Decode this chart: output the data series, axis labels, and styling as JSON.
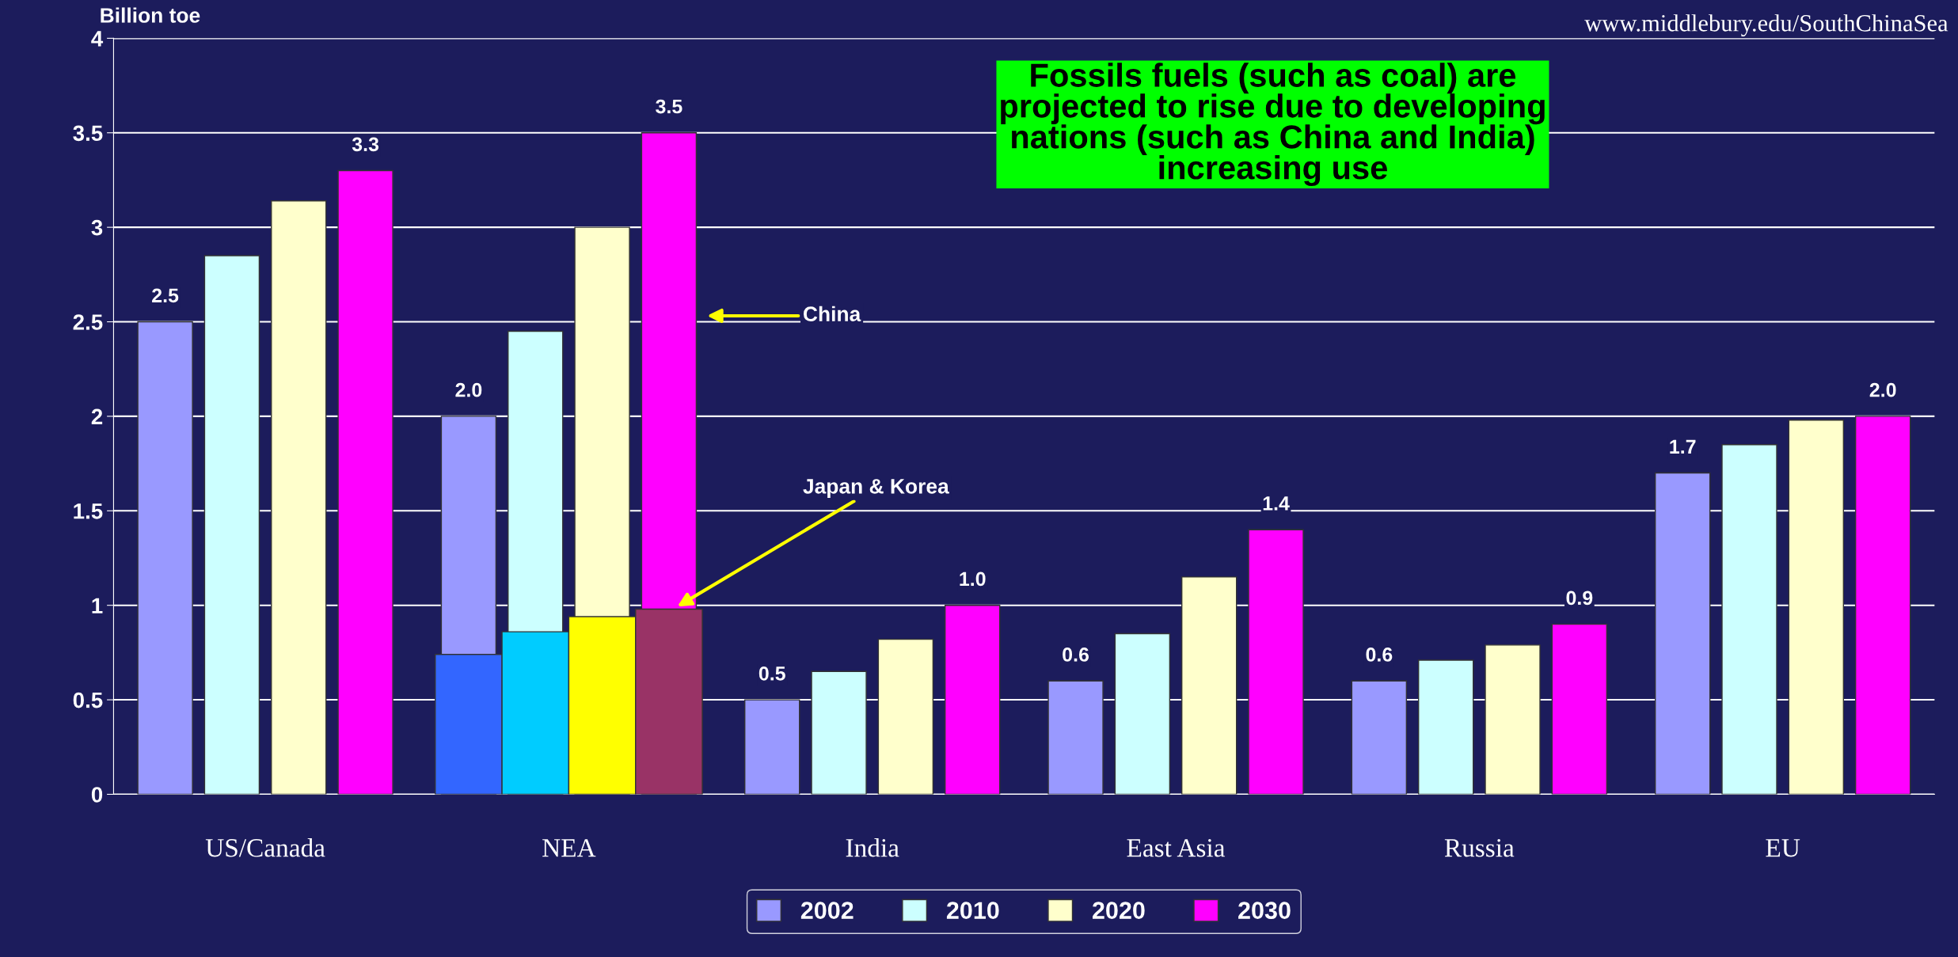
{
  "chart_data": {
    "type": "bar",
    "ylabel": "Billion toe",
    "categories": [
      "US/Canada",
      "NEA",
      "India",
      "East Asia",
      "Russia",
      "EU"
    ],
    "series": [
      {
        "name": "2002",
        "color": "#9999ff",
        "values": [
          2.5,
          2.0,
          0.5,
          0.6,
          0.6,
          1.7
        ],
        "value_labels": [
          "2.5",
          "2.0",
          "0.5",
          "0.6",
          "0.6",
          "1.7"
        ]
      },
      {
        "name": "2010",
        "color": "#ccffff",
        "values": [
          2.85,
          2.45,
          0.65,
          0.85,
          0.71,
          1.85
        ]
      },
      {
        "name": "2020",
        "color": "#ffffcc",
        "values": [
          3.14,
          3.0,
          0.82,
          1.15,
          0.79,
          1.98
        ]
      },
      {
        "name": "2030",
        "color": "#ff00ff",
        "values": [
          3.3,
          3.5,
          1.0,
          1.4,
          0.9,
          2.0
        ],
        "value_labels": [
          "3.3",
          "3.5",
          "1.0",
          "1.4",
          "0.9",
          "2.0"
        ]
      },
      {
        "color": "#3366ff",
        "values": [
          null,
          0.74,
          null,
          null,
          null,
          null
        ]
      },
      {
        "color": "#00ccff",
        "values": [
          null,
          0.86,
          null,
          null,
          null,
          null
        ]
      },
      {
        "color": "#ffff00",
        "values": [
          null,
          0.94,
          null,
          null,
          null,
          null
        ]
      },
      {
        "color": "#993366",
        "values": [
          null,
          0.98,
          null,
          null,
          null,
          null
        ]
      }
    ],
    "ylim": [
      0,
      4
    ],
    "yticks": [
      0,
      0.5,
      1,
      1.5,
      2,
      2.5,
      3,
      3.5,
      4
    ],
    "grid": "y",
    "legend": "bottom",
    "annotations": [
      "China",
      "Japan & Korea",
      "Fossils fuels (such as coal) are\nprojected to rise due to developing\nnations (such as China and India)\nincreasing use",
      "www.middlebury.edu/SouthChinaSea"
    ]
  }
}
